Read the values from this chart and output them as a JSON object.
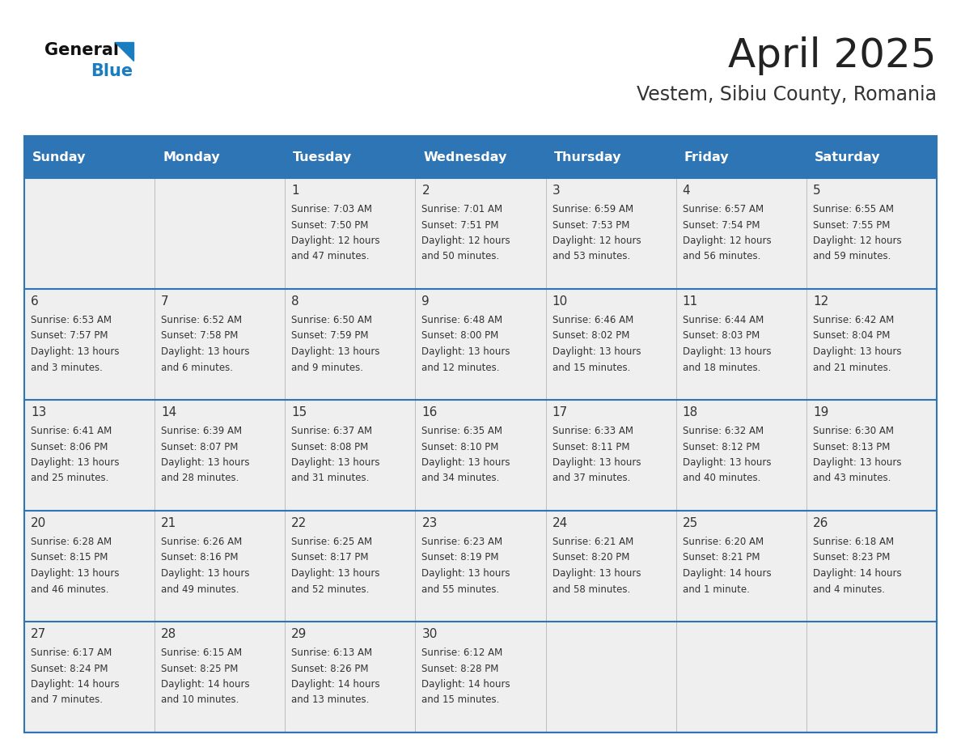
{
  "title": "April 2025",
  "subtitle": "Vestem, Sibiu County, Romania",
  "header_bg": "#2E75B6",
  "header_text_color": "#FFFFFF",
  "day_names": [
    "Sunday",
    "Monday",
    "Tuesday",
    "Wednesday",
    "Thursday",
    "Friday",
    "Saturday"
  ],
  "row_bg": "#EFEFEF",
  "cell_border_color": "#2E75B6",
  "title_color": "#222222",
  "subtitle_color": "#333333",
  "day_number_color": "#333333",
  "cell_text_color": "#333333",
  "logo_blue": "#1A7DC0",
  "logo_black": "#111111",
  "weeks": [
    {
      "days": [
        {
          "date": "",
          "info": ""
        },
        {
          "date": "",
          "info": ""
        },
        {
          "date": "1",
          "info": "Sunrise: 7:03 AM\nSunset: 7:50 PM\nDaylight: 12 hours\nand 47 minutes."
        },
        {
          "date": "2",
          "info": "Sunrise: 7:01 AM\nSunset: 7:51 PM\nDaylight: 12 hours\nand 50 minutes."
        },
        {
          "date": "3",
          "info": "Sunrise: 6:59 AM\nSunset: 7:53 PM\nDaylight: 12 hours\nand 53 minutes."
        },
        {
          "date": "4",
          "info": "Sunrise: 6:57 AM\nSunset: 7:54 PM\nDaylight: 12 hours\nand 56 minutes."
        },
        {
          "date": "5",
          "info": "Sunrise: 6:55 AM\nSunset: 7:55 PM\nDaylight: 12 hours\nand 59 minutes."
        }
      ]
    },
    {
      "days": [
        {
          "date": "6",
          "info": "Sunrise: 6:53 AM\nSunset: 7:57 PM\nDaylight: 13 hours\nand 3 minutes."
        },
        {
          "date": "7",
          "info": "Sunrise: 6:52 AM\nSunset: 7:58 PM\nDaylight: 13 hours\nand 6 minutes."
        },
        {
          "date": "8",
          "info": "Sunrise: 6:50 AM\nSunset: 7:59 PM\nDaylight: 13 hours\nand 9 minutes."
        },
        {
          "date": "9",
          "info": "Sunrise: 6:48 AM\nSunset: 8:00 PM\nDaylight: 13 hours\nand 12 minutes."
        },
        {
          "date": "10",
          "info": "Sunrise: 6:46 AM\nSunset: 8:02 PM\nDaylight: 13 hours\nand 15 minutes."
        },
        {
          "date": "11",
          "info": "Sunrise: 6:44 AM\nSunset: 8:03 PM\nDaylight: 13 hours\nand 18 minutes."
        },
        {
          "date": "12",
          "info": "Sunrise: 6:42 AM\nSunset: 8:04 PM\nDaylight: 13 hours\nand 21 minutes."
        }
      ]
    },
    {
      "days": [
        {
          "date": "13",
          "info": "Sunrise: 6:41 AM\nSunset: 8:06 PM\nDaylight: 13 hours\nand 25 minutes."
        },
        {
          "date": "14",
          "info": "Sunrise: 6:39 AM\nSunset: 8:07 PM\nDaylight: 13 hours\nand 28 minutes."
        },
        {
          "date": "15",
          "info": "Sunrise: 6:37 AM\nSunset: 8:08 PM\nDaylight: 13 hours\nand 31 minutes."
        },
        {
          "date": "16",
          "info": "Sunrise: 6:35 AM\nSunset: 8:10 PM\nDaylight: 13 hours\nand 34 minutes."
        },
        {
          "date": "17",
          "info": "Sunrise: 6:33 AM\nSunset: 8:11 PM\nDaylight: 13 hours\nand 37 minutes."
        },
        {
          "date": "18",
          "info": "Sunrise: 6:32 AM\nSunset: 8:12 PM\nDaylight: 13 hours\nand 40 minutes."
        },
        {
          "date": "19",
          "info": "Sunrise: 6:30 AM\nSunset: 8:13 PM\nDaylight: 13 hours\nand 43 minutes."
        }
      ]
    },
    {
      "days": [
        {
          "date": "20",
          "info": "Sunrise: 6:28 AM\nSunset: 8:15 PM\nDaylight: 13 hours\nand 46 minutes."
        },
        {
          "date": "21",
          "info": "Sunrise: 6:26 AM\nSunset: 8:16 PM\nDaylight: 13 hours\nand 49 minutes."
        },
        {
          "date": "22",
          "info": "Sunrise: 6:25 AM\nSunset: 8:17 PM\nDaylight: 13 hours\nand 52 minutes."
        },
        {
          "date": "23",
          "info": "Sunrise: 6:23 AM\nSunset: 8:19 PM\nDaylight: 13 hours\nand 55 minutes."
        },
        {
          "date": "24",
          "info": "Sunrise: 6:21 AM\nSunset: 8:20 PM\nDaylight: 13 hours\nand 58 minutes."
        },
        {
          "date": "25",
          "info": "Sunrise: 6:20 AM\nSunset: 8:21 PM\nDaylight: 14 hours\nand 1 minute."
        },
        {
          "date": "26",
          "info": "Sunrise: 6:18 AM\nSunset: 8:23 PM\nDaylight: 14 hours\nand 4 minutes."
        }
      ]
    },
    {
      "days": [
        {
          "date": "27",
          "info": "Sunrise: 6:17 AM\nSunset: 8:24 PM\nDaylight: 14 hours\nand 7 minutes."
        },
        {
          "date": "28",
          "info": "Sunrise: 6:15 AM\nSunset: 8:25 PM\nDaylight: 14 hours\nand 10 minutes."
        },
        {
          "date": "29",
          "info": "Sunrise: 6:13 AM\nSunset: 8:26 PM\nDaylight: 14 hours\nand 13 minutes."
        },
        {
          "date": "30",
          "info": "Sunrise: 6:12 AM\nSunset: 8:28 PM\nDaylight: 14 hours\nand 15 minutes."
        },
        {
          "date": "",
          "info": ""
        },
        {
          "date": "",
          "info": ""
        },
        {
          "date": "",
          "info": ""
        }
      ]
    }
  ]
}
